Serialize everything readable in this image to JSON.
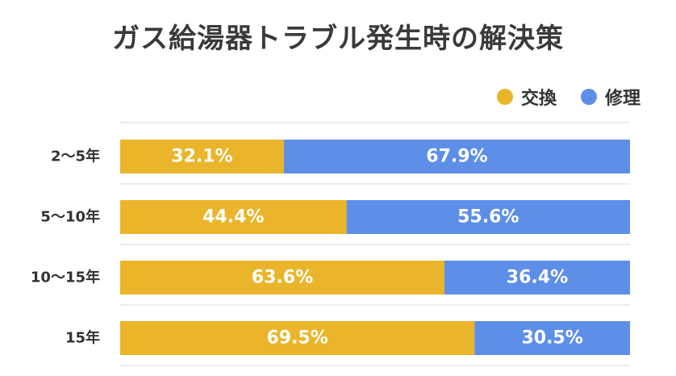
{
  "chart_data": {
    "type": "bar",
    "orientation": "horizontal",
    "stacked": true,
    "title": "ガス給湯器トラブル発生時の解決策",
    "categories": [
      "2〜5年",
      "5〜10年",
      "10〜15年",
      "15年"
    ],
    "series": [
      {
        "name": "交換",
        "values": [
          32.1,
          44.4,
          63.6,
          69.5
        ],
        "color": "#EAB52A"
      },
      {
        "name": "修理",
        "values": [
          67.9,
          55.6,
          36.4,
          30.5
        ],
        "color": "#5E8FE8"
      }
    ],
    "value_labels": [
      [
        "32.1%",
        "44.4%",
        "63.6%",
        "69.5%"
      ],
      [
        "67.9%",
        "55.6%",
        "36.4%",
        "30.5%"
      ]
    ],
    "xlim": [
      0,
      100
    ],
    "grid": true,
    "legend_position": "top-right"
  }
}
